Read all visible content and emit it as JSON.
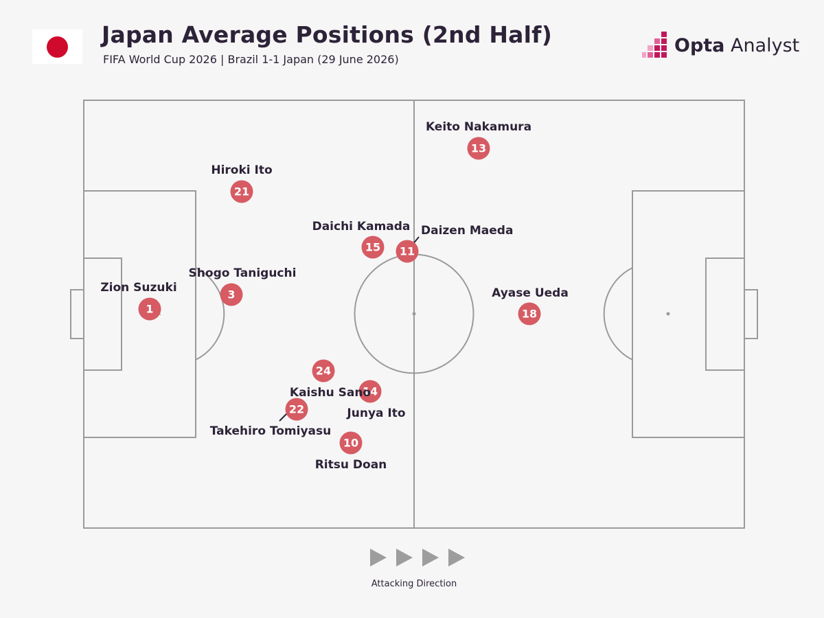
{
  "header": {
    "title": "Japan Average Positions (2nd Half)",
    "subtitle": "FIFA World Cup 2026 | Brazil 1-1 Japan (29 June 2026)",
    "flag_icon": "japan-flag-icon",
    "brand_name_bold": "Opta",
    "brand_name_light": " Analyst"
  },
  "colors": {
    "background": "#f6f6f6",
    "pitch_line": "#9a9a9a",
    "marker": "#d65b63",
    "marker_text": "#ffffff",
    "text": "#2d2338",
    "brand_accent": "#c2185b"
  },
  "pitch": {
    "attacking_direction": "right"
  },
  "players": [
    {
      "number": "13",
      "name": "Keito Nakamura"
    },
    {
      "number": "21",
      "name": "Hiroki Ito"
    },
    {
      "number": "15",
      "name": "Daichi Kamada"
    },
    {
      "number": "11",
      "name": "Daizen Maeda"
    },
    {
      "number": "3",
      "name": "Shogo Taniguchi"
    },
    {
      "number": "1",
      "name": "Zion Suzuki"
    },
    {
      "number": "18",
      "name": "Ayase Ueda"
    },
    {
      "number": "24",
      "name": ""
    },
    {
      "number": "14",
      "name": "Junya Ito"
    },
    {
      "number": "22",
      "name": "Takehiro Tomiyasu"
    },
    {
      "number": "10",
      "name": "Ritsu Doan"
    },
    {
      "number": "",
      "name": "Kaishu Sano"
    }
  ],
  "footer": {
    "direction_label": "Attacking Direction",
    "arrow_icon": "play-triangle-icon"
  }
}
